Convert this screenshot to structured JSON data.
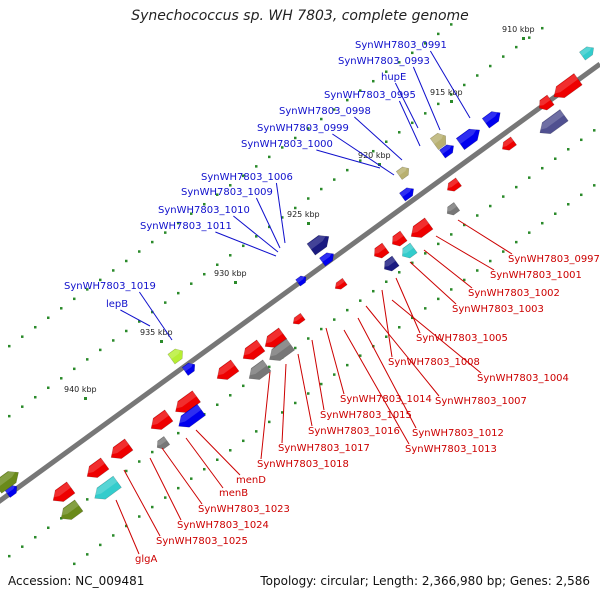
{
  "title": "Synechococcus sp. WH 7803, complete genome",
  "footer": {
    "accession": "Accession: NC_009481",
    "summary": "Topology: circular; Length: 2,366,980 bp; Genes: 2,586"
  },
  "colors": {
    "forward_gene": "#0000ee",
    "reverse_gene": "#ee0000",
    "label_blue": "#1010cc",
    "label_red": "#cc0000",
    "backbone": "#777777"
  },
  "kbp_ticks": [
    "910 kbp",
    "915 kbp",
    "920 kbp",
    "925 kbp",
    "930 kbp",
    "935 kbp",
    "940 kbp"
  ],
  "forward_labels": [
    "SynWH7803_0991",
    "SynWH7803_0993",
    "hupE",
    "SynWH7803_0995",
    "SynWH7803_0998",
    "SynWH7803_0999",
    "SynWH7803_1000",
    "SynWH7803_1006",
    "SynWH7803_1009",
    "SynWH7803_1010",
    "SynWH7803_1011",
    "SynWH7803_1019",
    "lepB"
  ],
  "reverse_labels": [
    "SynWH7803_0997",
    "SynWH7803_1001",
    "SynWH7803_1002",
    "SynWH7803_1003",
    "SynWH7803_1005",
    "SynWH7803_1008",
    "SynWH7803_1004",
    "SynWH7803_1014",
    "SynWH7803_1007",
    "SynWH7803_1015",
    "SynWH7803_1016",
    "SynWH7803_1012",
    "SynWH7803_1017",
    "SynWH7803_1013",
    "SynWH7803_1018",
    "menD",
    "menB",
    "SynWH7803_1023",
    "SynWH7803_1024",
    "SynWH7803_1025",
    "glgA"
  ]
}
